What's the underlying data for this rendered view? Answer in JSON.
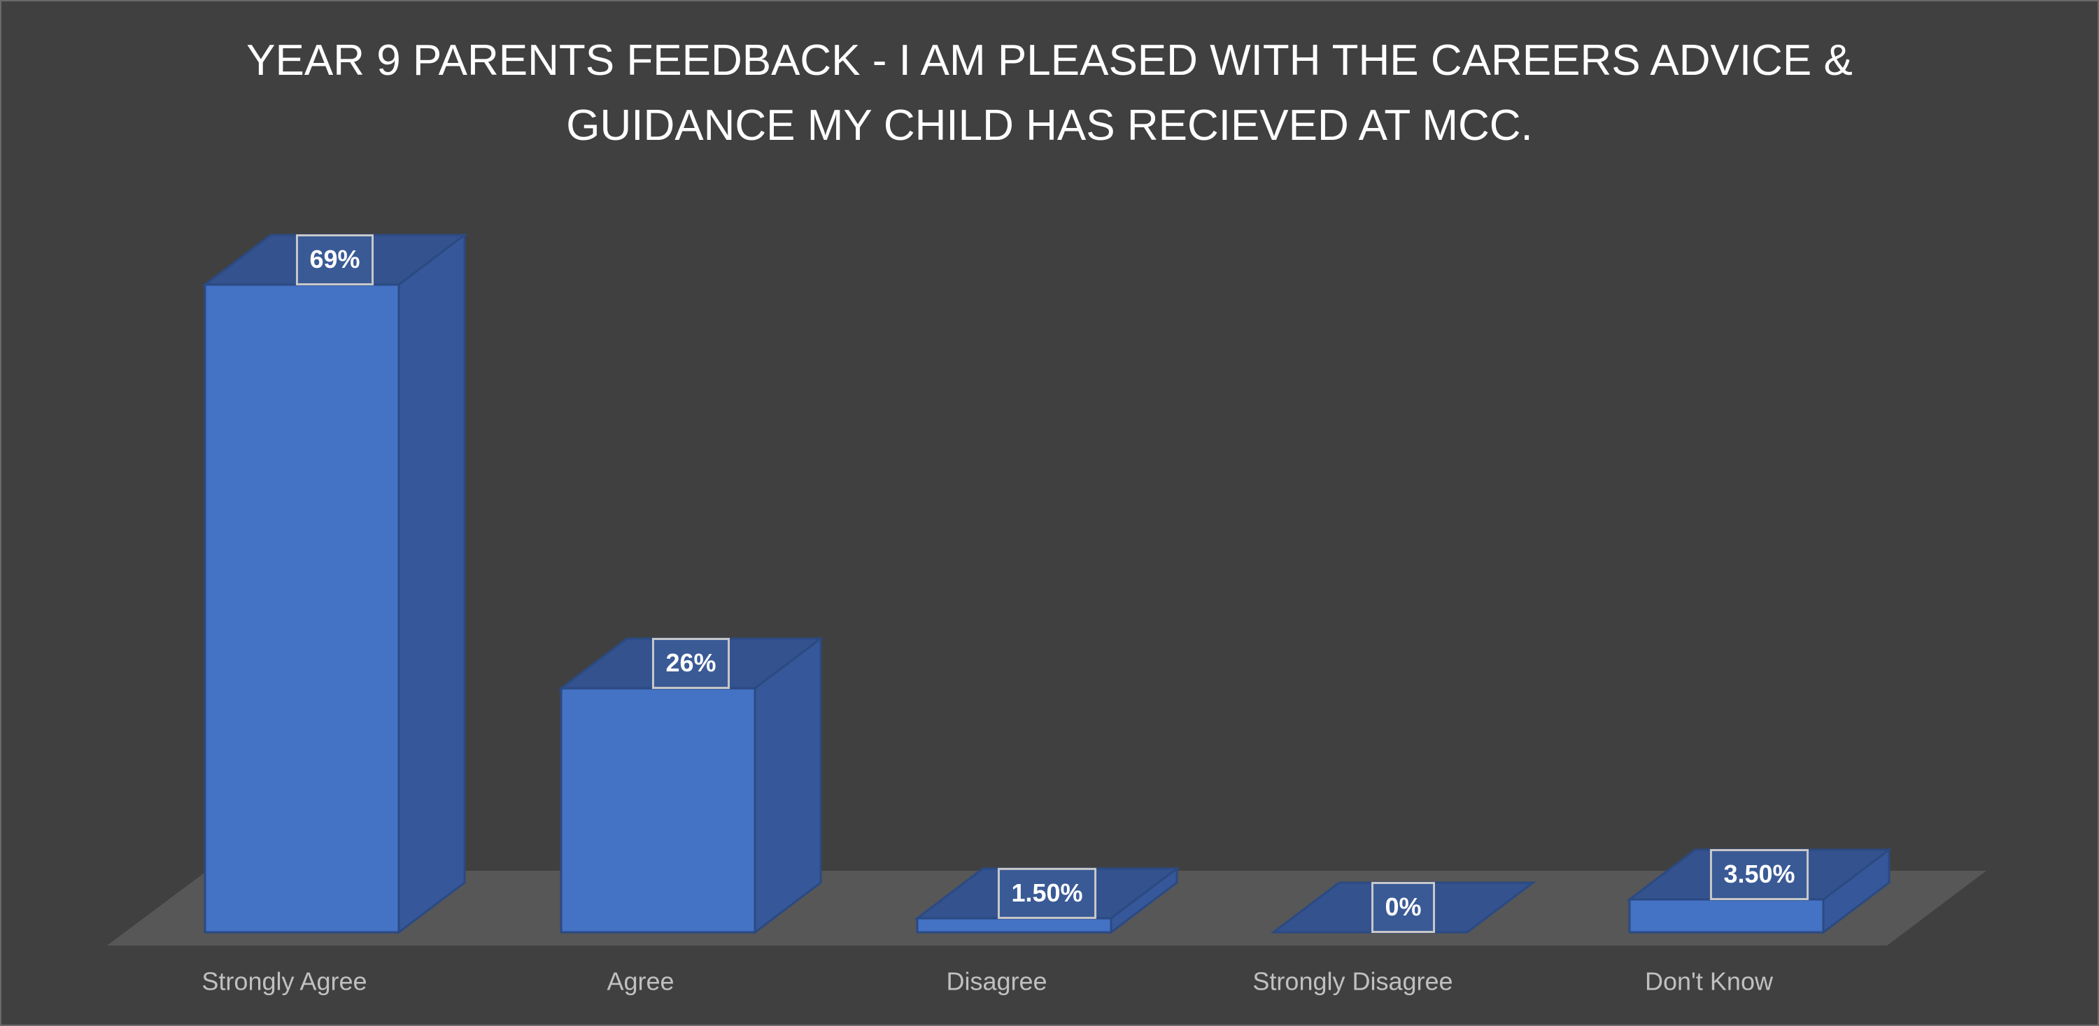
{
  "chart_data": {
    "type": "bar3d",
    "title": "YEAR 9 PARENTS FEEDBACK  - I AM PLEASED WITH THE CAREERS ADVICE & GUIDANCE MY CHILD HAS RECIEVED AT MCC.",
    "categories": [
      "Strongly Agree",
      "Agree",
      "Disagree",
      "Strongly Disagree",
      "Don't Know"
    ],
    "values": [
      69,
      26,
      1.5,
      0,
      3.5
    ],
    "value_labels": [
      "69%",
      "26%",
      "1.50%",
      "0%",
      "3.50%"
    ],
    "color": "#4472c4"
  }
}
